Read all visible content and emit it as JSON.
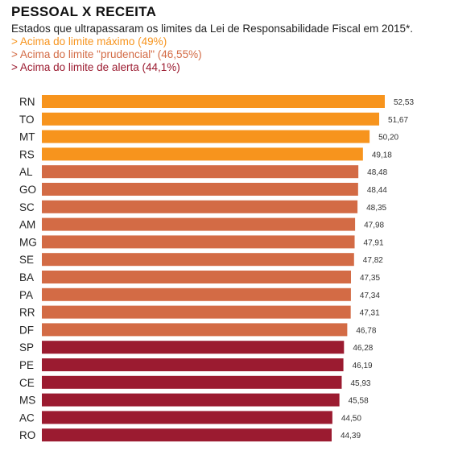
{
  "chart_data": {
    "type": "bar",
    "orientation": "horizontal",
    "title": "PESSOAL X RECEITA",
    "subtitle": "Estados que ultrapassaram os limites da Lei de Responsabilidade Fiscal em 2015*.",
    "legend": [
      {
        "label": "> Acima do limite máximo (49%)",
        "color": "#f7941d"
      },
      {
        "label": "> Acima do limite \"prudencial\" (46,55%)",
        "color": "#d36b45"
      },
      {
        "label": "> Acima do limite de alerta (44,1%)",
        "color": "#9b1b30"
      }
    ],
    "categories": [
      "RN",
      "TO",
      "MT",
      "RS",
      "AL",
      "GO",
      "SC",
      "AM",
      "MG",
      "SE",
      "BA",
      "PA",
      "RR",
      "DF",
      "SP",
      "PE",
      "CE",
      "MS",
      "AC",
      "RO"
    ],
    "values": [
      52.53,
      51.67,
      50.2,
      49.18,
      48.48,
      48.44,
      48.35,
      47.98,
      47.91,
      47.82,
      47.35,
      47.34,
      47.31,
      46.78,
      46.28,
      46.19,
      45.93,
      45.58,
      44.5,
      44.39
    ],
    "value_labels": [
      "52,53",
      "51,67",
      "50,20",
      "49,18",
      "48,48",
      "48,44",
      "48,35",
      "47,98",
      "47,91",
      "47,82",
      "47,35",
      "47,34",
      "47,31",
      "46,78",
      "46,28",
      "46,19",
      "45,93",
      "45,58",
      "44,50",
      "44,39"
    ],
    "group": [
      0,
      0,
      0,
      0,
      1,
      1,
      1,
      1,
      1,
      1,
      1,
      1,
      1,
      1,
      2,
      2,
      2,
      2,
      2,
      2
    ],
    "xlim": [
      0,
      52.53
    ],
    "grid": false
  }
}
